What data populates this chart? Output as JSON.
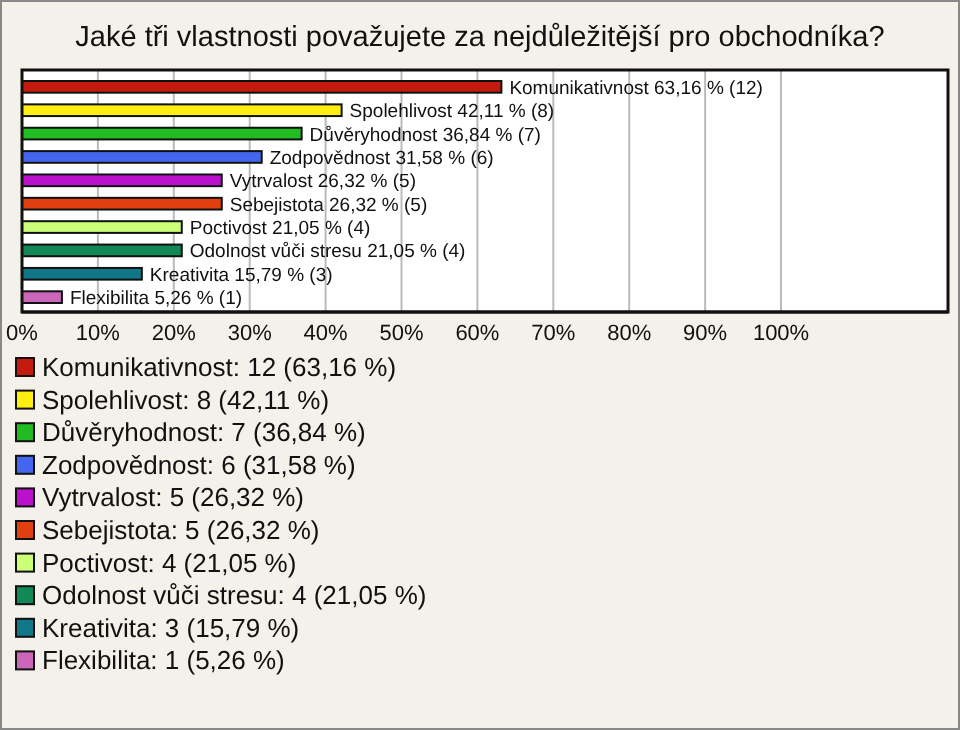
{
  "chart_data": {
    "type": "bar",
    "orientation": "horizontal",
    "title": "Jaké tři vlastnosti považujete za nejdůležitější pro obchodníka?",
    "categories": [
      null,
      null,
      null,
      null,
      null,
      null,
      null,
      null,
      null,
      null
    ],
    "series": [
      {
        "name": "Komunikativnost: 12 (63,16 %)",
        "color": "#c41a0e",
        "values": [
          63.16,
          null,
          null,
          null,
          null,
          null,
          null,
          null,
          null,
          null
        ],
        "value_labels": [
          "Komunikativnost 63,16 % (12)",
          null,
          null,
          null,
          null,
          null,
          null,
          null,
          null,
          null
        ]
      },
      {
        "name": "Spolehlivost: 8 (42,11 %)",
        "color": "#ffee11",
        "values": [
          null,
          42.11,
          null,
          null,
          null,
          null,
          null,
          null,
          null,
          null
        ],
        "value_labels": [
          null,
          "Spolehlivost 42,11 % (8)",
          null,
          null,
          null,
          null,
          null,
          null,
          null,
          null
        ]
      },
      {
        "name": "Důvěryhodnost: 7 (36,84 %)",
        "color": "#22bb22",
        "values": [
          null,
          null,
          36.84,
          null,
          null,
          null,
          null,
          null,
          null,
          null
        ],
        "value_labels": [
          null,
          null,
          "Důvěryhodnost 36,84 % (7)",
          null,
          null,
          null,
          null,
          null,
          null,
          null
        ]
      },
      {
        "name": "Zodpovědnost: 6 (31,58 %)",
        "color": "#4466ee",
        "values": [
          null,
          null,
          null,
          31.58,
          null,
          null,
          null,
          null,
          null,
          null
        ],
        "value_labels": [
          null,
          null,
          null,
          "Zodpovědnost 31,58 % (6)",
          null,
          null,
          null,
          null,
          null,
          null
        ]
      },
      {
        "name": "Vytrvalost: 5 (26,32 %)",
        "color": "#bb11cc",
        "values": [
          null,
          null,
          null,
          null,
          26.32,
          null,
          null,
          null,
          null,
          null
        ],
        "value_labels": [
          null,
          null,
          null,
          null,
          "Vytrvalost 26,32 % (5)",
          null,
          null,
          null,
          null,
          null
        ]
      },
      {
        "name": "Sebejistota: 5 (26,32 %)",
        "color": "#e04010",
        "values": [
          null,
          null,
          null,
          null,
          null,
          26.32,
          null,
          null,
          null,
          null
        ],
        "value_labels": [
          null,
          null,
          null,
          null,
          null,
          "Sebejistota 26,32 % (5)",
          null,
          null,
          null,
          null
        ]
      },
      {
        "name": "Poctivost: 4 (21,05 %)",
        "color": "#ccff77",
        "values": [
          null,
          null,
          null,
          null,
          null,
          null,
          21.05,
          null,
          null,
          null
        ],
        "value_labels": [
          null,
          null,
          null,
          null,
          null,
          null,
          "Poctivost 21,05 % (4)",
          null,
          null,
          null
        ]
      },
      {
        "name": "Odolnost vůči stresu: 4 (21,05 %)",
        "color": "#118855",
        "values": [
          null,
          null,
          null,
          null,
          null,
          null,
          null,
          21.05,
          null,
          null
        ],
        "value_labels": [
          null,
          null,
          null,
          null,
          null,
          null,
          null,
          "Odolnost vůči stresu 21,05 % (4)",
          null,
          null
        ]
      },
      {
        "name": "Kreativita: 3 (15,79 %)",
        "color": "#117788",
        "values": [
          null,
          null,
          null,
          null,
          null,
          null,
          null,
          null,
          15.79,
          null
        ],
        "value_labels": [
          null,
          null,
          null,
          null,
          null,
          null,
          null,
          null,
          "Kreativita 15,79 % (3)",
          null
        ]
      },
      {
        "name": "Flexibilita: 1 (5,26 %)",
        "color": "#cc66bb",
        "values": [
          null,
          null,
          null,
          null,
          null,
          null,
          null,
          null,
          null,
          5.26
        ],
        "value_labels": [
          null,
          null,
          null,
          null,
          null,
          null,
          null,
          null,
          null,
          "Flexibilita 5,26 % (1)"
        ]
      }
    ],
    "xlim": [
      0,
      122
    ],
    "xticks": [
      {
        "value": 0,
        "label": "0%"
      },
      {
        "value": 10,
        "label": "10%"
      },
      {
        "value": 20,
        "label": "20%"
      },
      {
        "value": 30,
        "label": "30%"
      },
      {
        "value": 40,
        "label": "40%"
      },
      {
        "value": 50,
        "label": "50%"
      },
      {
        "value": 60,
        "label": "60%"
      },
      {
        "value": 70,
        "label": "70%"
      },
      {
        "value": 80,
        "label": "80%"
      },
      {
        "value": 90,
        "label": "90%"
      },
      {
        "value": 100,
        "label": "100%"
      }
    ],
    "grid": "x",
    "legend": "bottom",
    "tick_labels": "x"
  }
}
